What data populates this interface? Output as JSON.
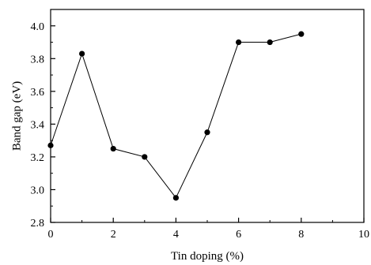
{
  "chart_data": {
    "type": "line",
    "title": "",
    "xlabel": "Tin doping (%)",
    "ylabel": "Band gap (eV)",
    "xlim": [
      0,
      10
    ],
    "ylim": [
      2.8,
      4.1
    ],
    "x_ticks": [
      "0",
      "2",
      "4",
      "6",
      "8",
      "10"
    ],
    "y_ticks": [
      "2.8",
      "3.0",
      "3.2",
      "3.4",
      "3.6",
      "3.8",
      "4.0"
    ],
    "grid": false,
    "legend": "none",
    "series": [
      {
        "x": [
          0,
          1,
          2,
          3,
          4,
          5,
          6,
          7,
          8
        ],
        "y": [
          3.27,
          3.83,
          3.25,
          3.2,
          2.95,
          3.35,
          3.9,
          3.9,
          3.95
        ],
        "marker": "filled-circle",
        "color": "#000000"
      }
    ]
  }
}
